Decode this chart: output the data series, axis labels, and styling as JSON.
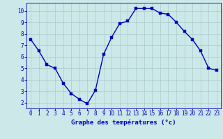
{
  "x": [
    0,
    1,
    2,
    3,
    4,
    5,
    6,
    7,
    8,
    9,
    10,
    11,
    12,
    13,
    14,
    15,
    16,
    17,
    18,
    19,
    20,
    21,
    22,
    23
  ],
  "y": [
    7.5,
    6.5,
    5.3,
    5.0,
    3.7,
    2.8,
    2.3,
    1.9,
    3.1,
    6.2,
    7.7,
    8.9,
    9.1,
    10.2,
    10.2,
    10.2,
    9.8,
    9.7,
    9.0,
    8.2,
    7.5,
    6.5,
    5.0,
    4.8
  ],
  "line_color": "#0000bb",
  "marker_color": "#0000bb",
  "bg_color": "#cce8e8",
  "grid_color": "#aacccc",
  "axis_label_color": "#0000bb",
  "tick_label_color": "#0000bb",
  "xlabel": "Graphe des températures (°c)",
  "ylim": [
    1.5,
    10.7
  ],
  "xlim": [
    -0.5,
    23.5
  ],
  "yticks": [
    2,
    3,
    4,
    5,
    6,
    7,
    8,
    9,
    10
  ],
  "xticks": [
    0,
    1,
    2,
    3,
    4,
    5,
    6,
    7,
    8,
    9,
    10,
    11,
    12,
    13,
    14,
    15,
    16,
    17,
    18,
    19,
    20,
    21,
    22,
    23
  ],
  "axis_fontsize": 6.5,
  "tick_fontsize": 5.5,
  "linewidth": 1.0,
  "markersize": 2.5
}
